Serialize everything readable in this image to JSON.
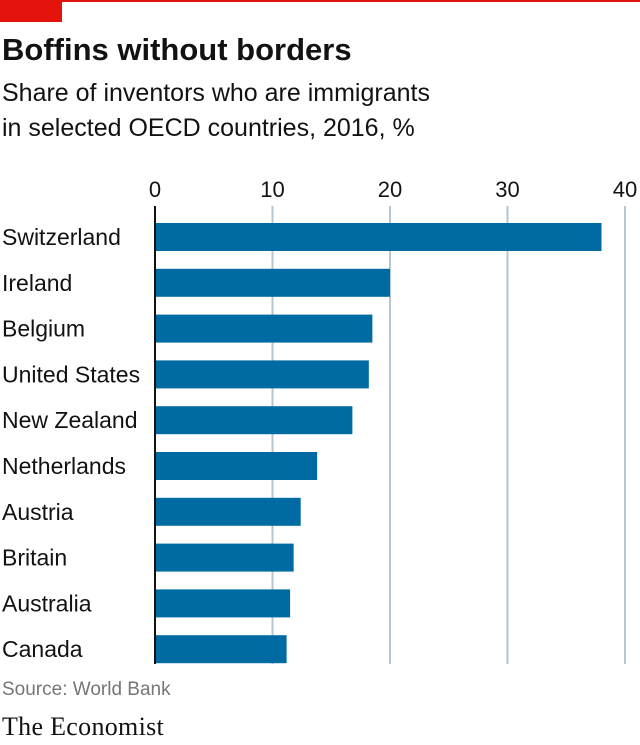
{
  "header": {
    "title": "Boffins without borders",
    "subtitle_line1": "Share of inventors who are immigrants",
    "subtitle_line2": "in selected OECD countries, 2016, %"
  },
  "footer": {
    "source": "Source: World Bank",
    "logo": "The Economist"
  },
  "colors": {
    "accent": "#e3120b",
    "bar": "#006ba2",
    "grid": "#b7c6cf",
    "text": "#121212"
  },
  "chart_data": {
    "type": "bar",
    "orientation": "horizontal",
    "title": "Boffins without borders",
    "subtitle": "Share of inventors who are immigrants in selected OECD countries, 2016, %",
    "categories": [
      "Switzerland",
      "Ireland",
      "Belgium",
      "United States",
      "New Zealand",
      "Netherlands",
      "Austria",
      "Britain",
      "Australia",
      "Canada"
    ],
    "values": [
      38.0,
      20.0,
      18.5,
      18.2,
      16.8,
      13.8,
      12.4,
      11.8,
      11.5,
      11.2
    ],
    "xlim": [
      0,
      40
    ],
    "ticks": [
      0,
      10,
      20,
      30,
      40
    ],
    "tick_labels": [
      "0",
      "10",
      "20",
      "30",
      "40"
    ],
    "xaxis_position": "top",
    "grid": true,
    "legend": "none"
  }
}
